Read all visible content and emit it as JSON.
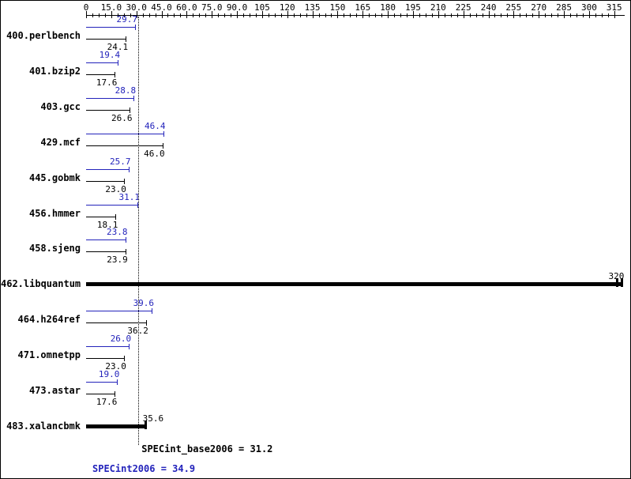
{
  "chart_data": {
    "type": "bar",
    "orientation": "horizontal",
    "title": "",
    "axis": {
      "position": "top",
      "min": 0,
      "max": 321.3,
      "grid": false,
      "minor_ticks_per_interval": 3,
      "tick_labels": [
        "0",
        "15.0",
        "30.0",
        "45.0",
        "60.0",
        "75.0",
        "90.0",
        "105",
        "120",
        "135",
        "150",
        "165",
        "180",
        "195",
        "210",
        "225",
        "240",
        "255",
        "270",
        "285",
        "300",
        "315"
      ]
    },
    "series": [
      {
        "name": "peak",
        "color": "#2323bb"
      },
      {
        "name": "base",
        "color": "#000000"
      }
    ],
    "benchmarks": [
      {
        "name": "400.perlbench",
        "peak": 29.7,
        "peak_label": "29.7",
        "base": 24.1,
        "base_label": "24.1"
      },
      {
        "name": "401.bzip2",
        "peak": 19.4,
        "peak_label": "19.4",
        "base": 17.6,
        "base_label": "17.6"
      },
      {
        "name": "403.gcc",
        "peak": 28.8,
        "peak_label": "28.8",
        "base": 26.6,
        "base_label": "26.6"
      },
      {
        "name": "429.mcf",
        "peak": 46.4,
        "peak_label": "46.4",
        "base": 46.0,
        "base_label": "46.0"
      },
      {
        "name": "445.gobmk",
        "peak": 25.7,
        "peak_label": "25.7",
        "base": 23.0,
        "base_label": "23.0"
      },
      {
        "name": "456.hmmer",
        "peak": 31.1,
        "peak_label": "31.1",
        "base": 18.1,
        "base_label": "18.1"
      },
      {
        "name": "458.sjeng",
        "peak": 23.8,
        "peak_label": "23.8",
        "base": 23.9,
        "base_label": "23.9"
      },
      {
        "name": "462.libquantum",
        "single": 320,
        "single_label": "320",
        "thick": true,
        "double_cap": true
      },
      {
        "name": "464.h264ref",
        "peak": 39.6,
        "peak_label": "39.6",
        "base": 36.2,
        "base_label": "36.2"
      },
      {
        "name": "471.omnetpp",
        "peak": 26.0,
        "peak_label": "26.0",
        "base": 23.0,
        "base_label": "23.0"
      },
      {
        "name": "473.astar",
        "peak": 19.0,
        "peak_label": "19.0",
        "base": 17.6,
        "base_label": "17.6"
      },
      {
        "name": "483.xalancbmk",
        "single": 35.6,
        "single_label": "35.6",
        "thick": true
      }
    ],
    "summary": {
      "base_text": "SPECint_base2006 = 31.2",
      "base_value": 31.2,
      "peak_text": "SPECint2006 = 34.9",
      "peak_value": 34.9
    },
    "colors": {
      "peak": "#2323bb",
      "base": "#000000",
      "background": "#ffffff",
      "border": "#000000"
    }
  }
}
